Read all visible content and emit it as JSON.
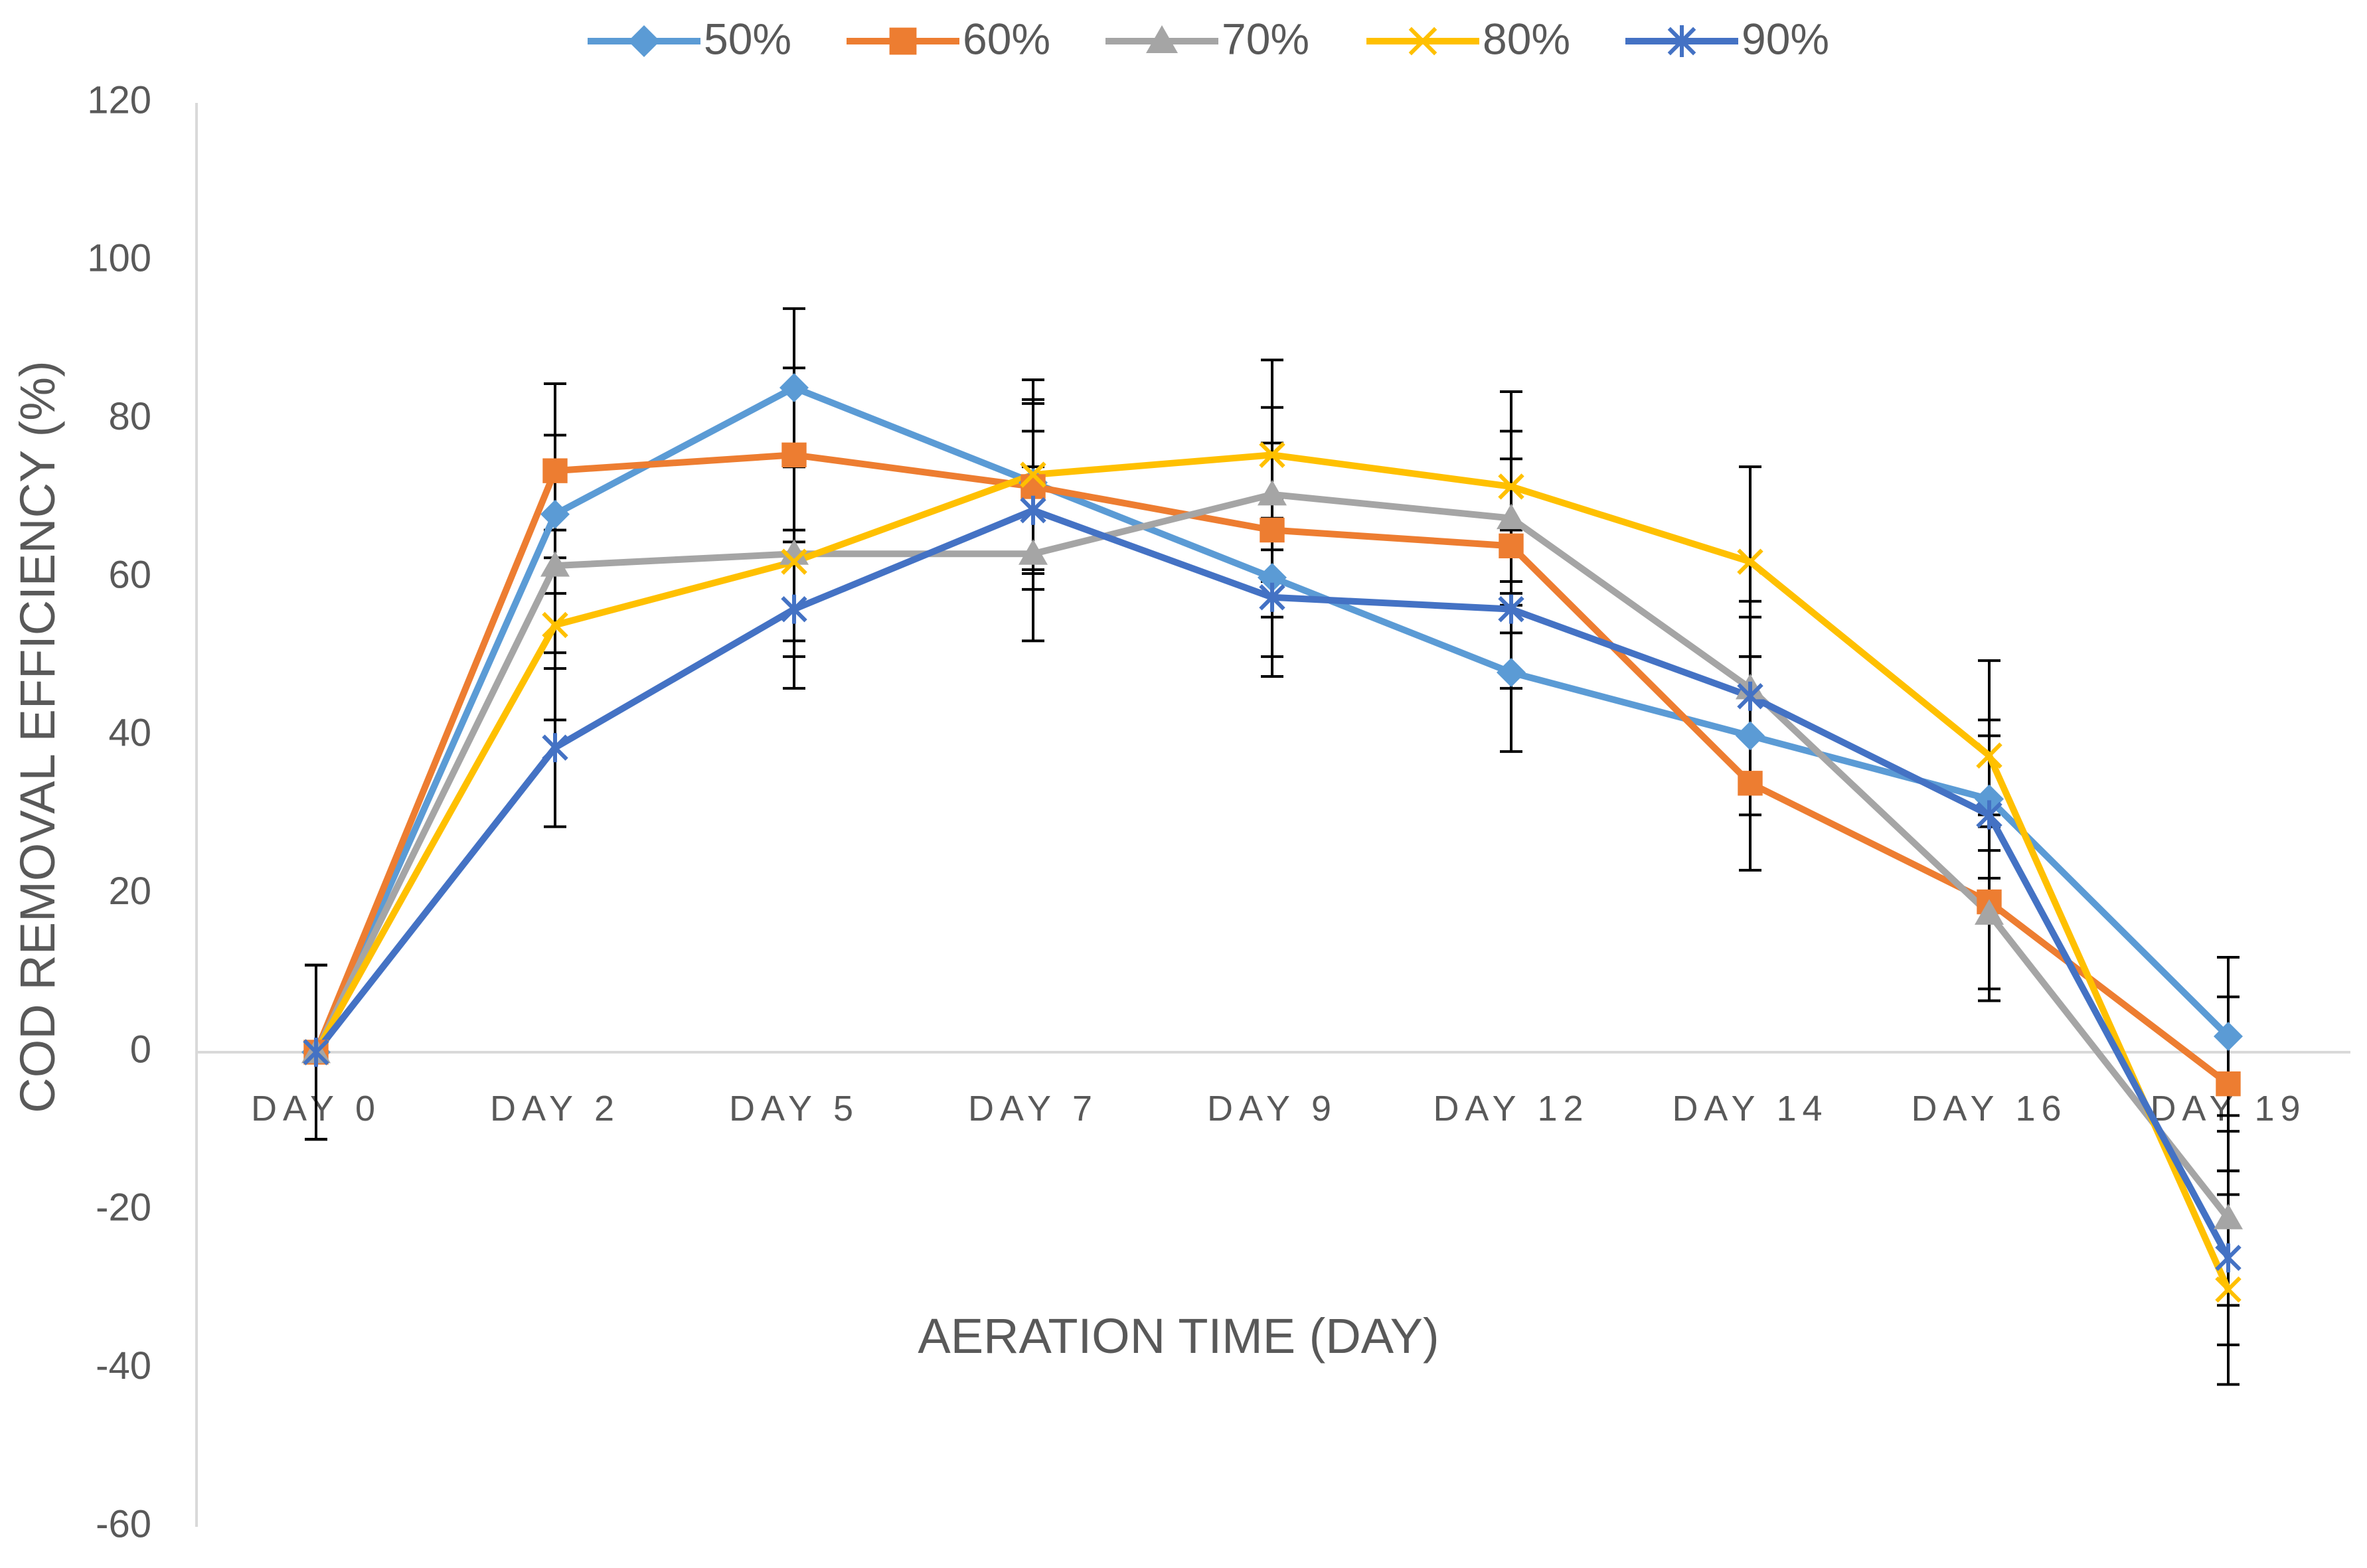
{
  "chart_data": {
    "type": "line",
    "title": "",
    "xlabel": "AERATION TIME (DAY)",
    "ylabel": "COD REMOVAL EFFICIENCY (%)",
    "categories": [
      "DAY 0",
      "DAY 2",
      "DAY 5",
      "DAY 7",
      "DAY 9",
      "DAY 12",
      "DAY 14",
      "DAY 16",
      "DAY 19"
    ],
    "ylim": [
      -60,
      120
    ],
    "yticks": [
      -60,
      -40,
      -20,
      0,
      20,
      40,
      60,
      80,
      100,
      120
    ],
    "ytick_labels": [
      "-60",
      "-40",
      "-20",
      "0",
      "20",
      "40",
      "60",
      "80",
      "100",
      "120"
    ],
    "legend_position": "top",
    "grid": false,
    "series": [
      {
        "name": "50%",
        "color": "#5B9BD5",
        "marker": "diamond",
        "values": [
          0,
          68,
          84,
          72,
          60,
          48,
          40,
          32,
          2
        ],
        "errors": [
          11,
          10,
          10,
          10,
          10,
          10,
          10,
          10,
          10
        ]
      },
      {
        "name": "60%",
        "color": "#ED7D31",
        "marker": "square",
        "values": [
          0,
          73.5,
          75.5,
          71.5,
          66,
          64,
          34,
          19,
          -4
        ],
        "errors": [
          11,
          11,
          11,
          11,
          11,
          11,
          11,
          11,
          11
        ]
      },
      {
        "name": "70%",
        "color": "#A5A5A5",
        "marker": "triangle",
        "values": [
          0,
          61.5,
          63,
          63,
          70.5,
          67.5,
          46,
          17.5,
          -21
        ],
        "errors": [
          11,
          11,
          11,
          11,
          11,
          11,
          11,
          11,
          11
        ]
      },
      {
        "name": "80%",
        "color": "#FFC000",
        "marker": "x",
        "values": [
          0,
          54,
          62,
          73,
          75.5,
          71.5,
          62,
          37.5,
          -30
        ],
        "errors": [
          11,
          12,
          12,
          12,
          12,
          12,
          12,
          12,
          12
        ]
      },
      {
        "name": "90%",
        "color": "#4472C4",
        "marker": "star",
        "values": [
          0,
          38.5,
          56,
          68.5,
          57.5,
          56,
          45,
          30,
          -26
        ],
        "errors": [
          11,
          10,
          10,
          10,
          10,
          10,
          10,
          10,
          11
        ]
      }
    ]
  }
}
